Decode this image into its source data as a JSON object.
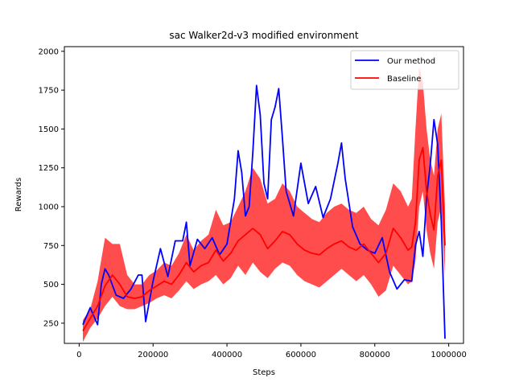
{
  "chart_data": {
    "type": "line",
    "title": "sac Walker2d-v3 modified environment",
    "xlabel": "Steps",
    "ylabel": "Rewards",
    "xlim": [
      -40000,
      1040000
    ],
    "ylim": [
      120,
      2030
    ],
    "xticks": [
      0,
      200000,
      400000,
      600000,
      800000,
      1000000
    ],
    "yticks": [
      250,
      500,
      750,
      1000,
      1250,
      1500,
      1750,
      2000
    ],
    "grid": false,
    "legend": {
      "position": "top-right",
      "entries": [
        "Our method",
        "Baseline"
      ]
    },
    "series": [
      {
        "name": "Our method",
        "color": "#0000ff",
        "x": [
          10000,
          30000,
          50000,
          60000,
          70000,
          80000,
          100000,
          120000,
          140000,
          160000,
          170000,
          180000,
          200000,
          220000,
          240000,
          260000,
          280000,
          290000,
          300000,
          320000,
          340000,
          360000,
          380000,
          400000,
          420000,
          430000,
          440000,
          450000,
          460000,
          470000,
          480000,
          490000,
          500000,
          510000,
          520000,
          530000,
          540000,
          550000,
          560000,
          580000,
          600000,
          620000,
          640000,
          660000,
          680000,
          700000,
          710000,
          720000,
          740000,
          760000,
          780000,
          800000,
          820000,
          840000,
          860000,
          880000,
          900000,
          910000,
          920000,
          930000,
          940000,
          950000,
          960000,
          970000,
          980000,
          990000
        ],
        "y": [
          240,
          350,
          240,
          500,
          600,
          560,
          430,
          410,
          470,
          560,
          560,
          260,
          520,
          730,
          550,
          780,
          780,
          900,
          620,
          790,
          730,
          800,
          690,
          760,
          1050,
          1360,
          1220,
          940,
          1000,
          1350,
          1780,
          1590,
          1150,
          1050,
          1560,
          1640,
          1760,
          1440,
          1100,
          940,
          1280,
          1020,
          1130,
          930,
          1050,
          1280,
          1410,
          1180,
          870,
          760,
          720,
          700,
          800,
          580,
          470,
          530,
          520,
          750,
          840,
          680,
          1060,
          1270,
          1560,
          1400,
          900,
          150
        ]
      },
      {
        "name": "Baseline",
        "color": "#ff0000",
        "band_color": "#ff0000",
        "x": [
          10000,
          30000,
          50000,
          70000,
          90000,
          110000,
          130000,
          150000,
          170000,
          190000,
          210000,
          230000,
          250000,
          270000,
          290000,
          310000,
          330000,
          350000,
          370000,
          390000,
          410000,
          430000,
          450000,
          470000,
          490000,
          510000,
          530000,
          550000,
          570000,
          590000,
          610000,
          630000,
          650000,
          670000,
          690000,
          710000,
          730000,
          750000,
          770000,
          790000,
          810000,
          830000,
          850000,
          870000,
          890000,
          900000,
          910000,
          920000,
          930000,
          940000,
          950000,
          960000,
          970000,
          980000,
          990000
        ],
        "y": [
          200,
          280,
          360,
          490,
          560,
          500,
          420,
          410,
          420,
          460,
          490,
          520,
          500,
          560,
          640,
          580,
          620,
          640,
          720,
          650,
          700,
          780,
          820,
          860,
          820,
          730,
          780,
          840,
          820,
          760,
          720,
          700,
          690,
          730,
          760,
          780,
          740,
          720,
          760,
          700,
          640,
          700,
          860,
          800,
          720,
          740,
          900,
          1300,
          1380,
          1100,
          950,
          850,
          1200,
          1300,
          750
        ],
        "lower": [
          130,
          220,
          280,
          360,
          420,
          360,
          340,
          340,
          360,
          380,
          410,
          430,
          410,
          460,
          520,
          470,
          500,
          520,
          560,
          500,
          540,
          620,
          560,
          640,
          580,
          540,
          600,
          640,
          620,
          560,
          520,
          500,
          480,
          520,
          560,
          600,
          560,
          520,
          560,
          500,
          420,
          460,
          620,
          560,
          500,
          520,
          650,
          1000,
          1100,
          850,
          700,
          600,
          900,
          1000,
          560
        ],
        "upper": [
          270,
          340,
          520,
          800,
          760,
          760,
          560,
          500,
          500,
          560,
          590,
          640,
          620,
          700,
          820,
          720,
          780,
          820,
          980,
          880,
          900,
          1000,
          1100,
          1250,
          1180,
          1020,
          1050,
          1150,
          1100,
          1000,
          960,
          920,
          900,
          960,
          1000,
          1020,
          980,
          960,
          1000,
          920,
          880,
          980,
          1150,
          1100,
          1000,
          1050,
          1500,
          1900,
          1800,
          1500,
          1300,
          1200,
          1500,
          1600,
          1000
        ]
      }
    ]
  }
}
